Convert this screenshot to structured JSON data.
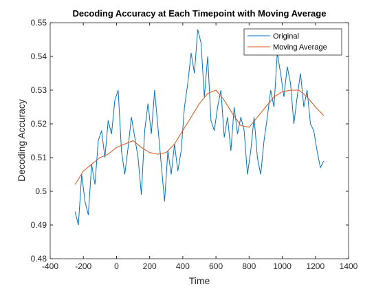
{
  "chart_data": {
    "type": "line",
    "title": "Decoding Accuracy at Each Timepoint with Moving Average",
    "x_label": "Time",
    "y_label": "Decoding Accuracy",
    "xlim": [
      -400,
      1400
    ],
    "xticks": [
      -400,
      -200,
      0,
      200,
      400,
      600,
      800,
      1000,
      1200,
      1400
    ],
    "ylim": [
      0.48,
      0.55
    ],
    "yticks": [
      0.48,
      0.49,
      0.5,
      0.51,
      0.52,
      0.53,
      0.54,
      0.55
    ],
    "legend": "northeast",
    "series": [
      {
        "name": "Original",
        "color": "#0072bd",
        "x": [
          -250,
          -230,
          -210,
          -190,
          -170,
          -150,
          -130,
          -110,
          -90,
          -70,
          -50,
          -30,
          -10,
          10,
          30,
          50,
          70,
          90,
          110,
          130,
          150,
          170,
          190,
          210,
          230,
          250,
          270,
          290,
          310,
          330,
          350,
          370,
          390,
          410,
          430,
          450,
          470,
          490,
          510,
          530,
          550,
          570,
          590,
          610,
          630,
          650,
          670,
          690,
          710,
          730,
          750,
          770,
          790,
          810,
          830,
          850,
          870,
          890,
          910,
          930,
          950,
          970,
          990,
          1010,
          1030,
          1050,
          1070,
          1090,
          1110,
          1130,
          1150,
          1170,
          1190,
          1210,
          1230,
          1250
        ],
        "values": [
          0.494,
          0.49,
          0.505,
          0.497,
          0.493,
          0.508,
          0.502,
          0.515,
          0.518,
          0.51,
          0.521,
          0.517,
          0.527,
          0.53,
          0.512,
          0.505,
          0.513,
          0.522,
          0.516,
          0.51,
          0.499,
          0.518,
          0.526,
          0.517,
          0.53,
          0.519,
          0.508,
          0.497,
          0.512,
          0.505,
          0.514,
          0.506,
          0.512,
          0.525,
          0.532,
          0.541,
          0.535,
          0.548,
          0.544,
          0.528,
          0.54,
          0.521,
          0.518,
          0.525,
          0.53,
          0.516,
          0.522,
          0.512,
          0.525,
          0.517,
          0.522,
          0.518,
          0.505,
          0.512,
          0.522,
          0.51,
          0.505,
          0.515,
          0.522,
          0.53,
          0.525,
          0.541,
          0.535,
          0.528,
          0.537,
          0.532,
          0.52,
          0.528,
          0.535,
          0.525,
          0.53,
          0.52,
          0.518,
          0.512,
          0.507,
          0.509
        ]
      },
      {
        "name": "Moving Average",
        "color": "#d95319",
        "x": [
          -250,
          -200,
          -150,
          -100,
          -50,
          0,
          50,
          100,
          150,
          200,
          250,
          300,
          350,
          400,
          450,
          500,
          550,
          600,
          650,
          700,
          750,
          800,
          850,
          900,
          950,
          1000,
          1050,
          1100,
          1150,
          1200,
          1250
        ],
        "values": [
          0.502,
          0.506,
          0.508,
          0.51,
          0.511,
          0.513,
          0.514,
          0.515,
          0.513,
          0.5115,
          0.511,
          0.5115,
          0.514,
          0.518,
          0.522,
          0.526,
          0.529,
          0.53,
          0.527,
          0.523,
          0.5195,
          0.519,
          0.522,
          0.525,
          0.528,
          0.5295,
          0.53,
          0.53,
          0.528,
          0.525,
          0.5225
        ]
      }
    ]
  }
}
